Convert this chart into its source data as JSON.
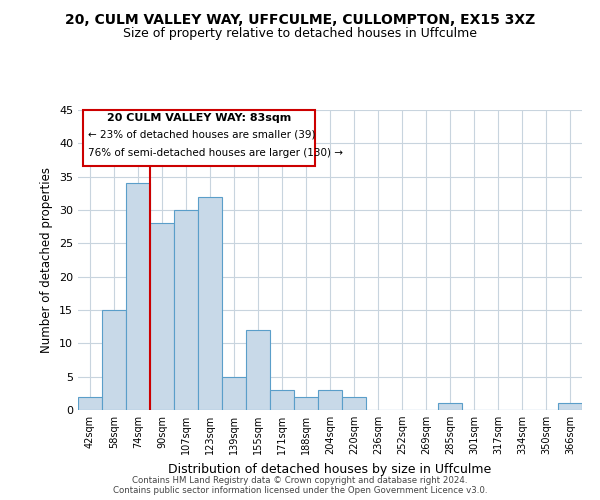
{
  "title": "20, CULM VALLEY WAY, UFFCULME, CULLOMPTON, EX15 3XZ",
  "subtitle": "Size of property relative to detached houses in Uffculme",
  "xlabel": "Distribution of detached houses by size in Uffculme",
  "ylabel": "Number of detached properties",
  "bar_labels": [
    "42sqm",
    "58sqm",
    "74sqm",
    "90sqm",
    "107sqm",
    "123sqm",
    "139sqm",
    "155sqm",
    "171sqm",
    "188sqm",
    "204sqm",
    "220sqm",
    "236sqm",
    "252sqm",
    "269sqm",
    "285sqm",
    "301sqm",
    "317sqm",
    "334sqm",
    "350sqm",
    "366sqm"
  ],
  "bar_values": [
    2,
    15,
    34,
    28,
    30,
    32,
    5,
    12,
    3,
    2,
    3,
    2,
    0,
    0,
    0,
    1,
    0,
    0,
    0,
    0,
    1
  ],
  "bar_color": "#c8d9e8",
  "bar_edge_color": "#5a9ec9",
  "ylim": [
    0,
    45
  ],
  "yticks": [
    0,
    5,
    10,
    15,
    20,
    25,
    30,
    35,
    40,
    45
  ],
  "property_line_color": "#cc0000",
  "annotation_title": "20 CULM VALLEY WAY: 83sqm",
  "annotation_line1": "← 23% of detached houses are smaller (39)",
  "annotation_line2": "76% of semi-detached houses are larger (130) →",
  "annotation_box_color": "#ffffff",
  "annotation_box_edge": "#cc0000",
  "footer_line1": "Contains HM Land Registry data © Crown copyright and database right 2024.",
  "footer_line2": "Contains public sector information licensed under the Open Government Licence v3.0.",
  "bg_color": "#ffffff",
  "grid_color": "#c8d4de"
}
